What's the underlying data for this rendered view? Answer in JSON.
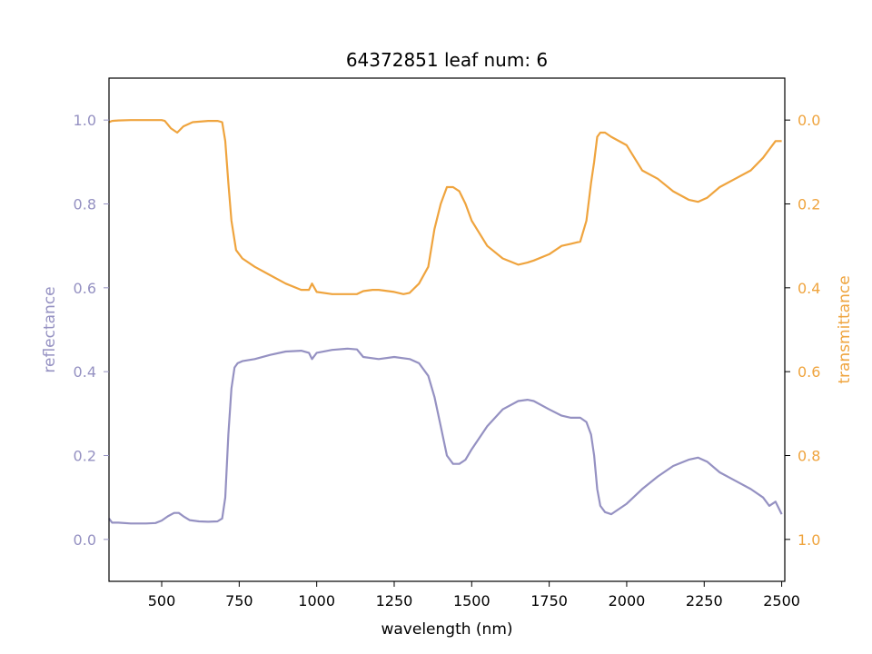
{
  "chart_data": {
    "type": "line",
    "title": "64372851 leaf num: 6",
    "xlabel": "wavelength (nm)",
    "ylabel": "reflectance",
    "y2label": "transmittance",
    "xlim": [
      330,
      2510
    ],
    "ylim": [
      -0.1,
      1.1
    ],
    "y2lim": [
      1.1,
      -0.1
    ],
    "y2_inverted": true,
    "x_ticks": [
      500,
      750,
      1000,
      1250,
      1500,
      1750,
      2000,
      2250,
      2500
    ],
    "y_ticks": [
      0.0,
      0.2,
      0.4,
      0.6,
      0.8,
      1.0
    ],
    "y2_ticks": [
      0.0,
      0.2,
      0.4,
      0.6,
      0.8,
      1.0
    ],
    "grid": false,
    "legend": "none",
    "colors": {
      "reflectance": "#9591c2",
      "transmittance": "#efa43e"
    },
    "series": [
      {
        "key": "reflectance",
        "axis": "left",
        "x": [
          330,
          340,
          360,
          400,
          450,
          480,
          500,
          520,
          540,
          555,
          570,
          590,
          620,
          650,
          680,
          695,
          705,
          715,
          725,
          735,
          745,
          760,
          800,
          850,
          900,
          950,
          975,
          985,
          1000,
          1050,
          1100,
          1130,
          1150,
          1200,
          1250,
          1300,
          1330,
          1360,
          1380,
          1400,
          1420,
          1440,
          1460,
          1480,
          1500,
          1550,
          1600,
          1650,
          1680,
          1700,
          1750,
          1790,
          1820,
          1850,
          1870,
          1885,
          1895,
          1905,
          1915,
          1930,
          1950,
          2000,
          2050,
          2100,
          2150,
          2200,
          2230,
          2260,
          2300,
          2350,
          2400,
          2440,
          2460,
          2480,
          2500
        ],
        "y": [
          0.05,
          0.04,
          0.04,
          0.038,
          0.038,
          0.039,
          0.045,
          0.055,
          0.063,
          0.063,
          0.055,
          0.046,
          0.043,
          0.042,
          0.043,
          0.05,
          0.1,
          0.25,
          0.36,
          0.41,
          0.42,
          0.425,
          0.43,
          0.44,
          0.448,
          0.45,
          0.445,
          0.43,
          0.445,
          0.452,
          0.455,
          0.453,
          0.435,
          0.43,
          0.435,
          0.43,
          0.42,
          0.39,
          0.34,
          0.27,
          0.2,
          0.18,
          0.18,
          0.19,
          0.215,
          0.27,
          0.31,
          0.33,
          0.333,
          0.33,
          0.31,
          0.295,
          0.29,
          0.29,
          0.28,
          0.25,
          0.2,
          0.12,
          0.08,
          0.065,
          0.06,
          0.085,
          0.12,
          0.15,
          0.175,
          0.19,
          0.195,
          0.185,
          0.16,
          0.14,
          0.12,
          0.1,
          0.08,
          0.09,
          0.06
        ]
      },
      {
        "key": "transmittance",
        "axis": "right",
        "x": [
          330,
          340,
          360,
          400,
          450,
          500,
          510,
          530,
          550,
          570,
          600,
          650,
          680,
          695,
          705,
          715,
          725,
          740,
          760,
          800,
          850,
          900,
          950,
          975,
          985,
          1000,
          1050,
          1100,
          1130,
          1150,
          1180,
          1200,
          1250,
          1280,
          1300,
          1330,
          1360,
          1380,
          1400,
          1420,
          1440,
          1460,
          1480,
          1500,
          1550,
          1600,
          1650,
          1680,
          1700,
          1750,
          1790,
          1820,
          1850,
          1870,
          1885,
          1895,
          1905,
          1915,
          1930,
          1950,
          2000,
          2050,
          2100,
          2150,
          2200,
          2230,
          2260,
          2300,
          2350,
          2400,
          2440,
          2460,
          2480,
          2500
        ],
        "y": [
          0.005,
          0.002,
          0.001,
          0.0,
          0.0,
          0.0,
          0.002,
          0.02,
          0.03,
          0.015,
          0.005,
          0.002,
          0.002,
          0.005,
          0.05,
          0.15,
          0.24,
          0.31,
          0.33,
          0.35,
          0.37,
          0.39,
          0.405,
          0.405,
          0.39,
          0.41,
          0.415,
          0.415,
          0.415,
          0.408,
          0.405,
          0.405,
          0.41,
          0.415,
          0.412,
          0.39,
          0.35,
          0.26,
          0.2,
          0.16,
          0.16,
          0.17,
          0.2,
          0.24,
          0.3,
          0.33,
          0.345,
          0.34,
          0.335,
          0.32,
          0.3,
          0.295,
          0.29,
          0.24,
          0.15,
          0.1,
          0.04,
          0.03,
          0.03,
          0.04,
          0.06,
          0.12,
          0.14,
          0.17,
          0.19,
          0.195,
          0.185,
          0.16,
          0.14,
          0.12,
          0.09,
          0.07,
          0.05,
          0.05
        ]
      }
    ]
  }
}
